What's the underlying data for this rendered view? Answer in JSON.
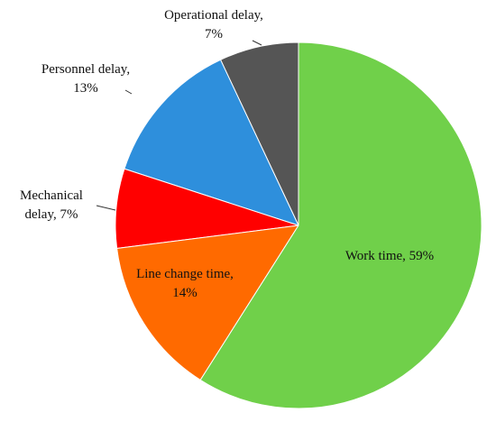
{
  "chart_data": {
    "type": "pie",
    "values": [
      59,
      14,
      7,
      13,
      7
    ],
    "value_labels": [
      "Work time, 59%",
      "Line change time, 14%",
      "Mechanical delay, 7%",
      "Personnel delay, 13%",
      "Operational delay, 7%"
    ],
    "colors": [
      "#70d04a",
      "#ff6a00",
      "#ff0000",
      "#2e8fdc",
      "#555555"
    ]
  }
}
